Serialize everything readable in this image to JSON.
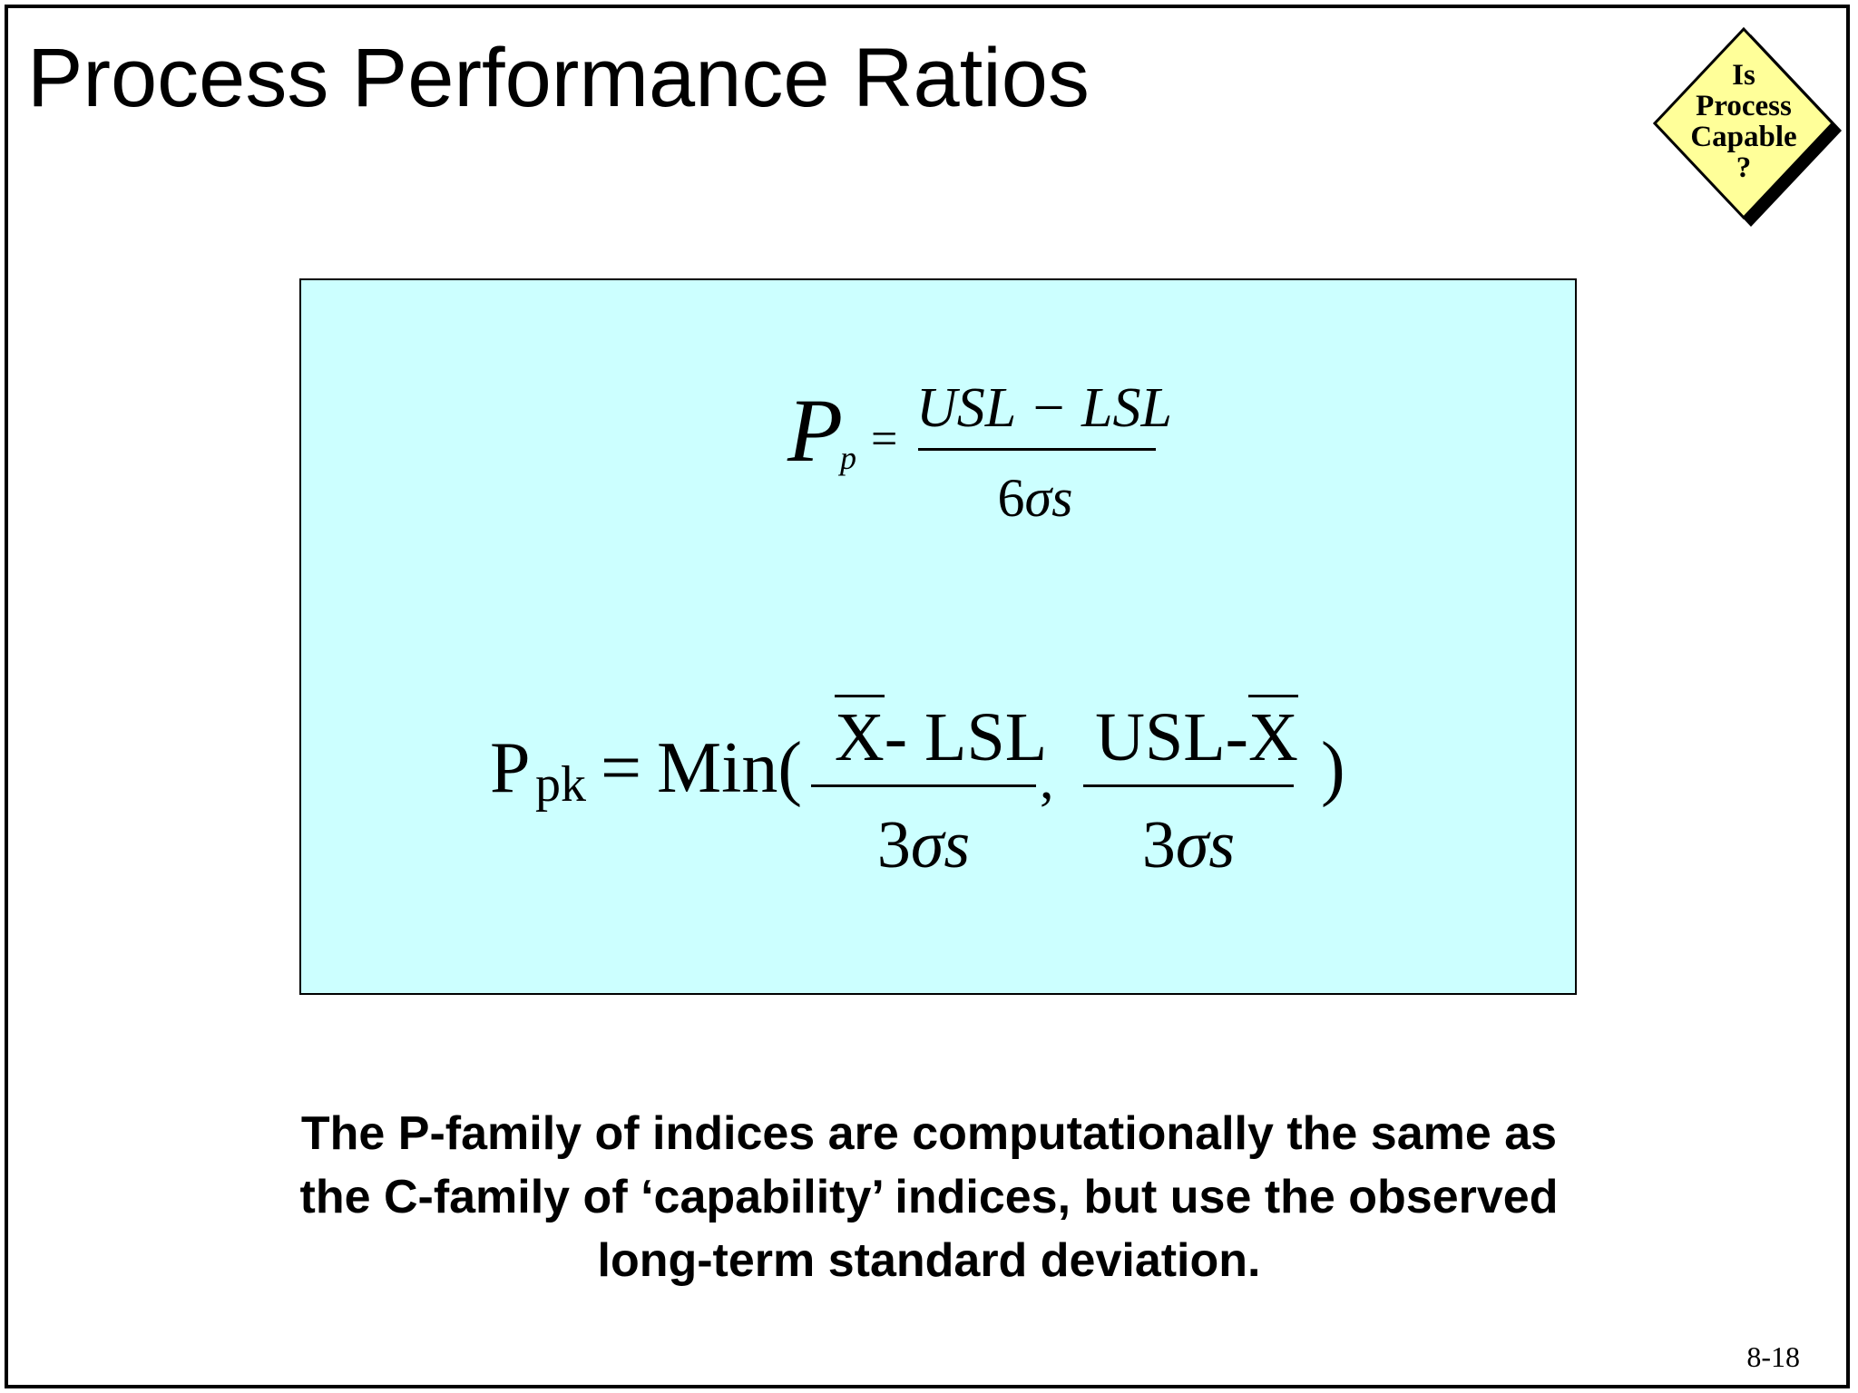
{
  "slide": {
    "title": "Process Performance Ratios",
    "page_number": "8-18"
  },
  "badge": {
    "icon": "diamond-decision-icon",
    "lines": [
      "Is",
      "Process",
      "Capable",
      "?"
    ],
    "fill_color": "#ffff99"
  },
  "formula_box": {
    "background_color": "#ccffff",
    "pp": {
      "symbol": "P",
      "subscript": "p",
      "equals": "=",
      "numerator": "USL − LSL",
      "denominator_coef": "6",
      "denominator_sigma": "σ",
      "denominator_s": "s"
    },
    "ppk": {
      "symbol": "P",
      "subscript": "pk",
      "equals": "=",
      "min": "Min(",
      "left_numerator_x": "X",
      "left_numerator_rest": "- LSL",
      "left_denominator_coef": "3",
      "left_denominator_sigma": "σ",
      "left_denominator_s": "s",
      "comma": ",",
      "right_numerator_rest": "USL-",
      "right_numerator_x": "X",
      "right_denominator_coef": "3",
      "right_denominator_sigma": "σ",
      "right_denominator_s": "s",
      "close": ")"
    }
  },
  "caption": {
    "lines": [
      "The P-family of indices are computationally the same as",
      "the C-family of ‘capability’ indices, but use the observed",
      "long-term standard deviation."
    ]
  }
}
